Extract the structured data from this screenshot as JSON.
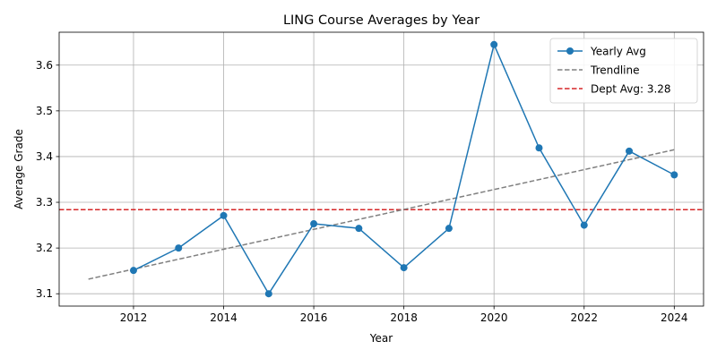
{
  "chart_data": {
    "type": "line",
    "title": "LING Course Averages by Year",
    "xlabel": "Year",
    "ylabel": "Average Grade",
    "xlim": [
      2010.35,
      2024.65
    ],
    "ylim": [
      3.073,
      3.672
    ],
    "x_ticks": [
      2012,
      2014,
      2016,
      2018,
      2020,
      2022,
      2024
    ],
    "y_ticks": [
      3.1,
      3.2,
      3.3,
      3.4,
      3.5,
      3.6
    ],
    "y_tick_labels": [
      "3.1",
      "3.2",
      "3.3",
      "3.4",
      "3.5",
      "3.6"
    ],
    "grid": true,
    "legend_position": "top-right",
    "series": [
      {
        "name": "Yearly Avg",
        "style": "solid-with-markers",
        "color": "#1f77b4",
        "x": [
          2012,
          2013,
          2014,
          2015,
          2016,
          2017,
          2018,
          2019,
          2020,
          2021,
          2022,
          2023,
          2024
        ],
        "y": [
          3.151,
          3.2,
          3.271,
          3.1,
          3.253,
          3.243,
          3.157,
          3.243,
          3.645,
          3.419,
          3.25,
          3.412,
          3.36
        ]
      },
      {
        "name": "Trendline",
        "style": "dashed",
        "color": "#808080",
        "x": [
          2011,
          2024
        ],
        "y": [
          3.132,
          3.415
        ]
      },
      {
        "name": "Dept Avg: 3.28",
        "style": "dashed-horizontal",
        "color": "#d62728",
        "y": 3.284
      }
    ]
  }
}
